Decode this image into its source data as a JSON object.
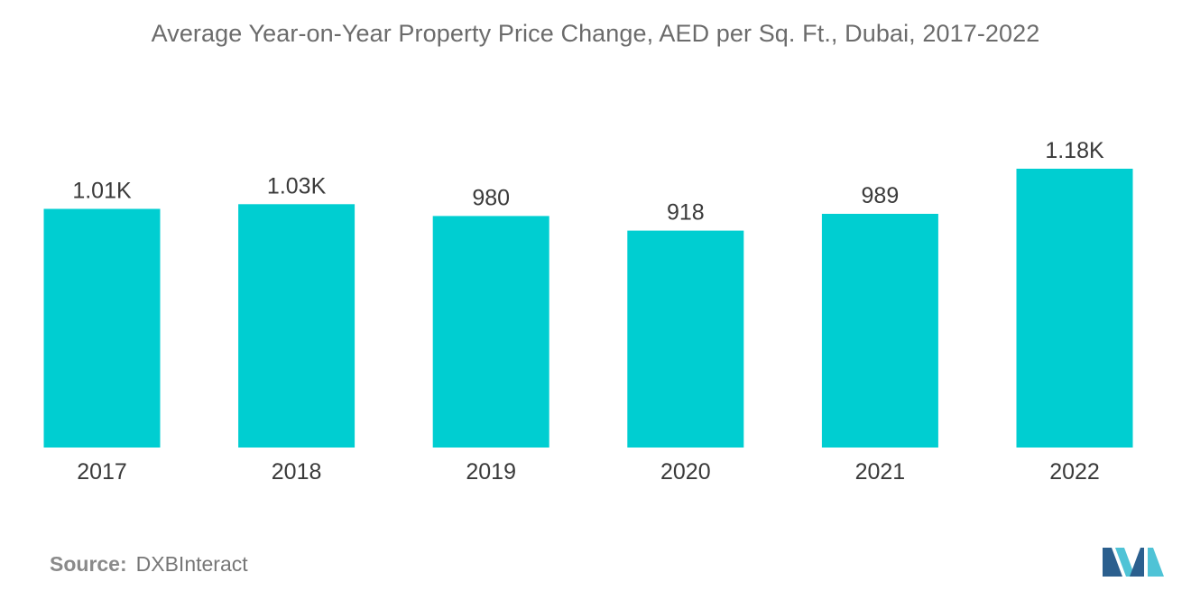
{
  "chart_data": {
    "type": "bar",
    "title": "Average Year-on-Year Property Price Change, AED per Sq. Ft., Dubai, 2017-2022",
    "xlabel": "",
    "ylabel": "",
    "categories": [
      "2017",
      "2018",
      "2019",
      "2020",
      "2021",
      "2022"
    ],
    "values": [
      1010,
      1030,
      980,
      918,
      989,
      1180
    ],
    "data_labels": [
      "1.01K",
      "1.03K",
      "980",
      "918",
      "989",
      "1.18K"
    ],
    "ylim": [
      0,
      1180
    ],
    "grid": false,
    "bar_color": "#00CED1"
  },
  "source": {
    "label": "Source:",
    "value": "DXBInteract"
  },
  "logo": {
    "icon": "mordor-intelligence-logo-icon",
    "color_dark": "#2b5f8e",
    "color_light": "#4fc3d6"
  }
}
